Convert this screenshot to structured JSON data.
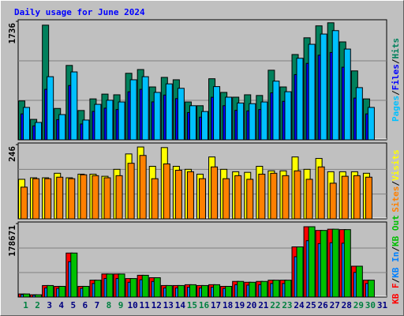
{
  "chart_data": {
    "type": "bar",
    "title": "Daily usage for June 2024",
    "categories": [
      "1",
      "2",
      "3",
      "4",
      "5",
      "6",
      "7",
      "8",
      "9",
      "10",
      "11",
      "12",
      "13",
      "14",
      "15",
      "16",
      "17",
      "18",
      "19",
      "20",
      "21",
      "22",
      "23",
      "24",
      "25",
      "26",
      "27",
      "28",
      "29",
      "30",
      "31"
    ],
    "category_colors": [
      "#008040",
      "#008040",
      "#000080",
      "#000080",
      "#000080",
      "#000080",
      "#000080",
      "#008040",
      "#008040",
      "#000080",
      "#000080",
      "#000080",
      "#000080",
      "#000080",
      "#008040",
      "#008040",
      "#000080",
      "#000080",
      "#000080",
      "#000080",
      "#000080",
      "#008040",
      "#008040",
      "#000080",
      "#000080",
      "#000080",
      "#000080",
      "#000080",
      "#008040",
      "#008040",
      "#000080"
    ],
    "legend_separator": "/",
    "panels": [
      {
        "ylim": [
          0,
          1736
        ],
        "yticks": [
          1736
        ],
        "reverse_bars": false,
        "series": [
          {
            "name": "Hits",
            "color": "#00805c",
            "values": [
              570,
              300,
              1680,
              460,
              1090,
              430,
              600,
              670,
              660,
              975,
              1030,
              775,
              915,
              880,
              555,
              500,
              895,
              695,
              625,
              660,
              650,
              1020,
              775,
              1250,
              1495,
              1670,
              1715,
              1435,
              1010,
              600,
              0
            ]
          },
          {
            "name": "Files",
            "color": "#0000ff",
            "values": [
              380,
              204,
              740,
              296,
              796,
              232,
              416,
              464,
              444,
              704,
              740,
              556,
              656,
              604,
              400,
              332,
              624,
              500,
              432,
              424,
              444,
              688,
              564,
              956,
              1120,
              1240,
              1280,
              1064,
              612,
              380,
              0
            ]
          },
          {
            "name": "Pages",
            "color": "#00c0ff",
            "values": [
              475,
              255,
              925,
              370,
              995,
              290,
              520,
              580,
              555,
              880,
              925,
              695,
              820,
              755,
              500,
              415,
              780,
              625,
              540,
              530,
              555,
              860,
              705,
              1195,
              1400,
              1550,
              1600,
              1330,
              765,
              475,
              0
            ]
          }
        ]
      },
      {
        "ylim": [
          0,
          246
        ],
        "yticks": [
          246
        ],
        "reverse_bars": false,
        "series": [
          {
            "name": "Visits",
            "color": "#ffff00",
            "values": [
              131,
              136,
              136,
              151,
              136,
              148,
              148,
              141,
              164,
              215,
              238,
              174,
              236,
              174,
              164,
              148,
              205,
              164,
              156,
              154,
              174,
              159,
              159,
              205,
              164,
              200,
              156,
              156,
              156,
              151,
              0
            ]
          },
          {
            "name": "Sites",
            "color": "#ff8000",
            "values": [
              105,
              133,
              133,
              138,
              133,
              146,
              143,
              136,
              143,
              184,
              210,
              133,
              182,
              161,
              156,
              133,
              172,
              133,
              143,
              131,
              148,
              151,
              143,
              159,
              131,
              172,
              118,
              141,
              143,
              138,
              0
            ]
          }
        ]
      },
      {
        "ylim": [
          0,
          178671
        ],
        "yticks": [
          178671
        ],
        "reverse_bars": true,
        "series": [
          {
            "name": "KB Out",
            "color": "#00c000",
            "values": [
              7500,
              5600,
              28000,
              26000,
              107000,
              26000,
              41000,
              56000,
              56000,
              45000,
              53000,
              47000,
              28000,
              28000,
              30000,
              28000,
              30000,
              26000,
              38000,
              36000,
              38000,
              41000,
              41000,
              122000,
              171000,
              162000,
              165000,
              164000,
              75000,
              41000,
              0
            ]
          },
          {
            "name": "KB In",
            "color": "#0080ff",
            "values": [
              6000,
              4500,
              22000,
              21000,
              86000,
              21000,
              33000,
              45000,
              45000,
              36000,
              42000,
              38000,
              22000,
              22000,
              24000,
              22000,
              24000,
              21000,
              30000,
              29000,
              30000,
              33000,
              33000,
              98000,
              137000,
              130000,
              132000,
              131000,
              60000,
              33000,
              0
            ]
          },
          {
            "name": "KB F",
            "color": "#ff0000",
            "values": [
              7500,
              5600,
              28000,
              26000,
              107000,
              26000,
              41000,
              56000,
              56000,
              45000,
              53000,
              47000,
              28000,
              28000,
              30000,
              28000,
              30000,
              26000,
              38000,
              36000,
              38000,
              41000,
              41000,
              122000,
              171000,
              162000,
              165000,
              164000,
              75000,
              41000,
              0
            ]
          }
        ]
      }
    ]
  }
}
